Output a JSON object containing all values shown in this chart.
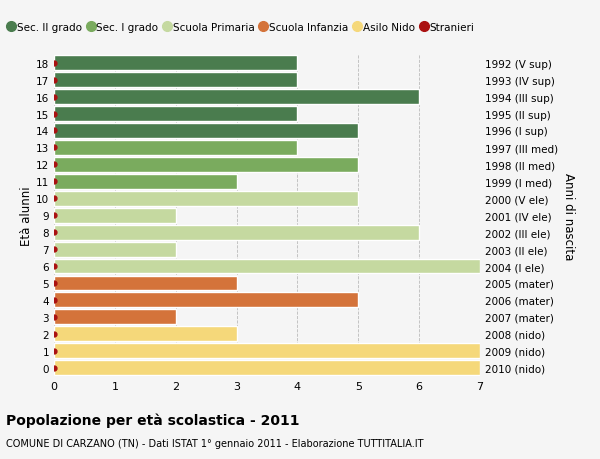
{
  "ages": [
    18,
    17,
    16,
    15,
    14,
    13,
    12,
    11,
    10,
    9,
    8,
    7,
    6,
    5,
    4,
    3,
    2,
    1,
    0
  ],
  "right_labels": [
    "1992 (V sup)",
    "1993 (IV sup)",
    "1994 (III sup)",
    "1995 (II sup)",
    "1996 (I sup)",
    "1997 (III med)",
    "1998 (II med)",
    "1999 (I med)",
    "2000 (V ele)",
    "2001 (IV ele)",
    "2002 (III ele)",
    "2003 (II ele)",
    "2004 (I ele)",
    "2005 (mater)",
    "2006 (mater)",
    "2007 (mater)",
    "2008 (nido)",
    "2009 (nido)",
    "2010 (nido)"
  ],
  "values": [
    4,
    4,
    6,
    4,
    5,
    4,
    5,
    3,
    5,
    2,
    6,
    2,
    7,
    3,
    5,
    2,
    3,
    7,
    7
  ],
  "colors": [
    "#4a7c4e",
    "#4a7c4e",
    "#4a7c4e",
    "#4a7c4e",
    "#4a7c4e",
    "#7aab5e",
    "#7aab5e",
    "#7aab5e",
    "#c5d9a0",
    "#c5d9a0",
    "#c5d9a0",
    "#c5d9a0",
    "#c5d9a0",
    "#d4733a",
    "#d4733a",
    "#d4733a",
    "#f5d87a",
    "#f5d87a",
    "#f5d87a"
  ],
  "stranieri_color": "#aa1111",
  "legend_labels": [
    "Sec. II grado",
    "Sec. I grado",
    "Scuola Primaria",
    "Scuola Infanzia",
    "Asilo Nido",
    "Stranieri"
  ],
  "legend_colors": [
    "#4a7c4e",
    "#7aab5e",
    "#c5d9a0",
    "#d4733a",
    "#f5d87a",
    "#aa1111"
  ],
  "ylabel_left": "Età alunni",
  "ylabel_right": "Anni di nascita",
  "title": "Popolazione per età scolastica - 2011",
  "subtitle": "COMUNE DI CARZANO (TN) - Dati ISTAT 1° gennaio 2011 - Elaborazione TUTTITALIA.IT",
  "xlim": [
    0,
    7
  ],
  "ylim": [
    -0.5,
    18.5
  ],
  "background_color": "#f5f5f5",
  "grid_color": "#bbbbbb",
  "bar_height": 0.88
}
